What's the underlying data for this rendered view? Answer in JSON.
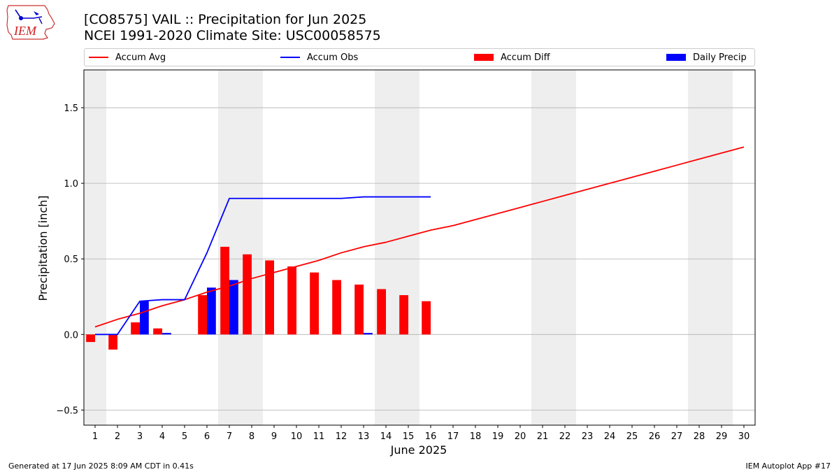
{
  "title_line1": "[CO8575] VAIL :: Precipitation for Jun 2025",
  "title_line2": "NCEI 1991-2020 Climate Site: USC00058575",
  "logo_text": "IEM",
  "footer_left": "Generated at 17 Jun 2025 8:09 AM CDT in 0.41s",
  "footer_right": "IEM Autoplot App #17",
  "colors": {
    "avg": "#ff0000",
    "obs": "#0000ff",
    "diff": "#ff0000",
    "daily": "#0000ff",
    "weekend": "#eeeeee",
    "grid": "#b0b0b0"
  },
  "chart_data": {
    "type": "bar",
    "title": "[CO8575] VAIL :: Precipitation for Jun 2025",
    "subtitle": "NCEI 1991-2020 Climate Site: USC00058575",
    "xlabel": "June 2025",
    "ylabel": "Precipitation [inch]",
    "ylim": [
      -0.6,
      1.75
    ],
    "xlim": [
      0.5,
      30.5
    ],
    "yticks": [
      -0.5,
      0.0,
      0.5,
      1.0,
      1.5
    ],
    "ytick_labels": [
      "−0.5",
      "0.0",
      "0.5",
      "1.0",
      "1.5"
    ],
    "x": [
      1,
      2,
      3,
      4,
      5,
      6,
      7,
      8,
      9,
      10,
      11,
      12,
      13,
      14,
      15,
      16,
      17,
      18,
      19,
      20,
      21,
      22,
      23,
      24,
      25,
      26,
      27,
      28,
      29,
      30
    ],
    "xtick_labels": [
      "1",
      "2",
      "3",
      "4",
      "5",
      "6",
      "7",
      "8",
      "9",
      "10",
      "11",
      "12",
      "13",
      "14",
      "15",
      "16",
      "17",
      "18",
      "19",
      "20",
      "21",
      "22",
      "23",
      "24",
      "25",
      "26",
      "27",
      "28",
      "29",
      "30"
    ],
    "weekend_days": [
      1,
      7,
      8,
      14,
      15,
      21,
      22,
      28,
      29
    ],
    "grid": true,
    "legend_position": "top",
    "legend": [
      "Accum Avg",
      "Accum Obs",
      "Accum Diff",
      "Daily Precip"
    ],
    "series": [
      {
        "name": "Accum Avg",
        "kind": "line",
        "x": [
          1,
          2,
          3,
          4,
          5,
          6,
          7,
          8,
          9,
          10,
          11,
          12,
          13,
          14,
          15,
          16,
          17,
          18,
          19,
          20,
          21,
          22,
          23,
          24,
          25,
          26,
          27,
          28,
          29,
          30
        ],
        "values": [
          0.05,
          0.1,
          0.14,
          0.19,
          0.23,
          0.28,
          0.32,
          0.37,
          0.41,
          0.45,
          0.49,
          0.54,
          0.58,
          0.61,
          0.65,
          0.69,
          0.72,
          0.76,
          0.8,
          0.84,
          0.88,
          0.92,
          0.96,
          1.0,
          1.04,
          1.08,
          1.12,
          1.16,
          1.2,
          1.24
        ]
      },
      {
        "name": "Accum Obs",
        "kind": "line",
        "x": [
          1,
          2,
          3,
          4,
          5,
          6,
          7,
          8,
          9,
          10,
          11,
          12,
          13,
          14,
          15,
          16
        ],
        "values": [
          0.0,
          0.0,
          0.22,
          0.23,
          0.23,
          0.54,
          0.9,
          0.9,
          0.9,
          0.9,
          0.9,
          0.9,
          0.91,
          0.91,
          0.91,
          0.91
        ]
      },
      {
        "name": "Accum Diff",
        "kind": "bar",
        "x": [
          1,
          2,
          3,
          4,
          5,
          6,
          7,
          8,
          9,
          10,
          11,
          12,
          13,
          14,
          15,
          16
        ],
        "values": [
          -0.05,
          -0.1,
          0.08,
          0.04,
          0.0,
          0.26,
          0.58,
          0.53,
          0.49,
          0.45,
          0.41,
          0.36,
          0.33,
          0.3,
          0.26,
          0.22
        ]
      },
      {
        "name": "Daily Precip",
        "kind": "bar",
        "x": [
          1,
          2,
          3,
          4,
          5,
          6,
          7,
          8,
          9,
          10,
          11,
          12,
          13,
          14,
          15,
          16
        ],
        "values": [
          0.0,
          0.0,
          0.22,
          0.01,
          0.0,
          0.31,
          0.36,
          0.0,
          0.0,
          0.0,
          0.0,
          0.0,
          0.01,
          0.0,
          0.0,
          0.0
        ]
      }
    ]
  }
}
